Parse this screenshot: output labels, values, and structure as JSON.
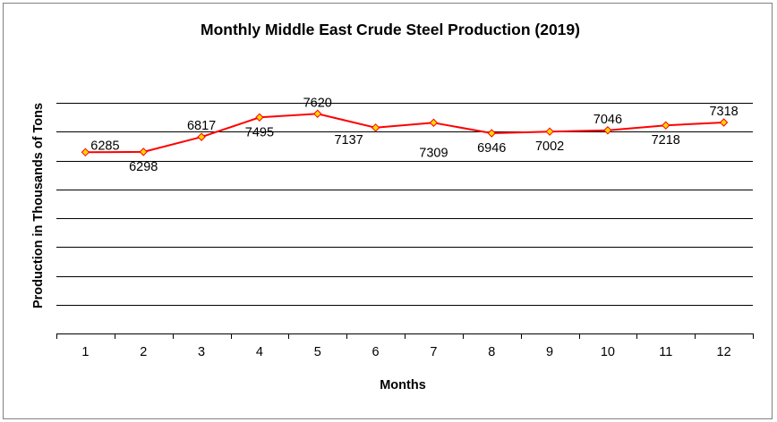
{
  "chart_data": {
    "type": "line",
    "title": "Monthly Middle East Crude Steel Production (2019)",
    "xlabel": "Months",
    "ylabel": "Production in Thousands of Tons",
    "categories": [
      "1",
      "2",
      "3",
      "4",
      "5",
      "6",
      "7",
      "8",
      "9",
      "10",
      "11",
      "12"
    ],
    "series": [
      {
        "values": [
          6285,
          6298,
          6817,
          7495,
          7620,
          7137,
          7309,
          6946,
          7002,
          7046,
          7218,
          7318
        ]
      }
    ],
    "ylim": [
      0,
      8000
    ],
    "y_axis_labels_shown": false,
    "grid": true,
    "legend": "none",
    "colors": {
      "line": "#ff0000",
      "marker_fill": "#ffd700",
      "marker_stroke": "#ff0000",
      "gridline": "#000000"
    }
  }
}
